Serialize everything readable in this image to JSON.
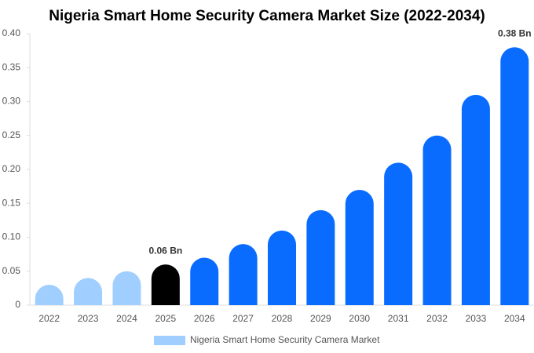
{
  "chart_data": {
    "type": "bar",
    "title": "Nigeria Smart Home Security Camera Market Size (2022-2034)",
    "categories": [
      "2022",
      "2023",
      "2024",
      "2025",
      "2026",
      "2027",
      "2028",
      "2029",
      "2030",
      "2031",
      "2032",
      "2033",
      "2034"
    ],
    "series": [
      {
        "name": "Nigeria Smart Home Security Camera Market",
        "color": "#a0cfff",
        "values": [
          0.03,
          0.04,
          0.05,
          0.06,
          0.07,
          0.09,
          0.11,
          0.14,
          0.17,
          0.21,
          0.25,
          0.31,
          0.38
        ],
        "colors": [
          "#a0cfff",
          "#a0cfff",
          "#a0cfff",
          "#000000",
          "#0a6cff",
          "#0a6cff",
          "#0a6cff",
          "#0a6cff",
          "#0a6cff",
          "#0a6cff",
          "#0a6cff",
          "#0a6cff",
          "#0a6cff"
        ],
        "value_labels": [
          null,
          null,
          null,
          "0.06 Bn",
          null,
          null,
          null,
          null,
          null,
          null,
          null,
          null,
          "0.38 Bn"
        ]
      }
    ],
    "ylim": [
      0,
      0.4
    ],
    "yticks": [
      0,
      0.05,
      {
        "value": 0.1,
        "label": "0.10"
      },
      0.15,
      {
        "value": 0.2,
        "label": "0.20"
      },
      0.25,
      {
        "value": 0.3,
        "label": "0.30"
      },
      0.35,
      {
        "value": 0.4,
        "label": "0.40"
      }
    ],
    "grid": false
  }
}
